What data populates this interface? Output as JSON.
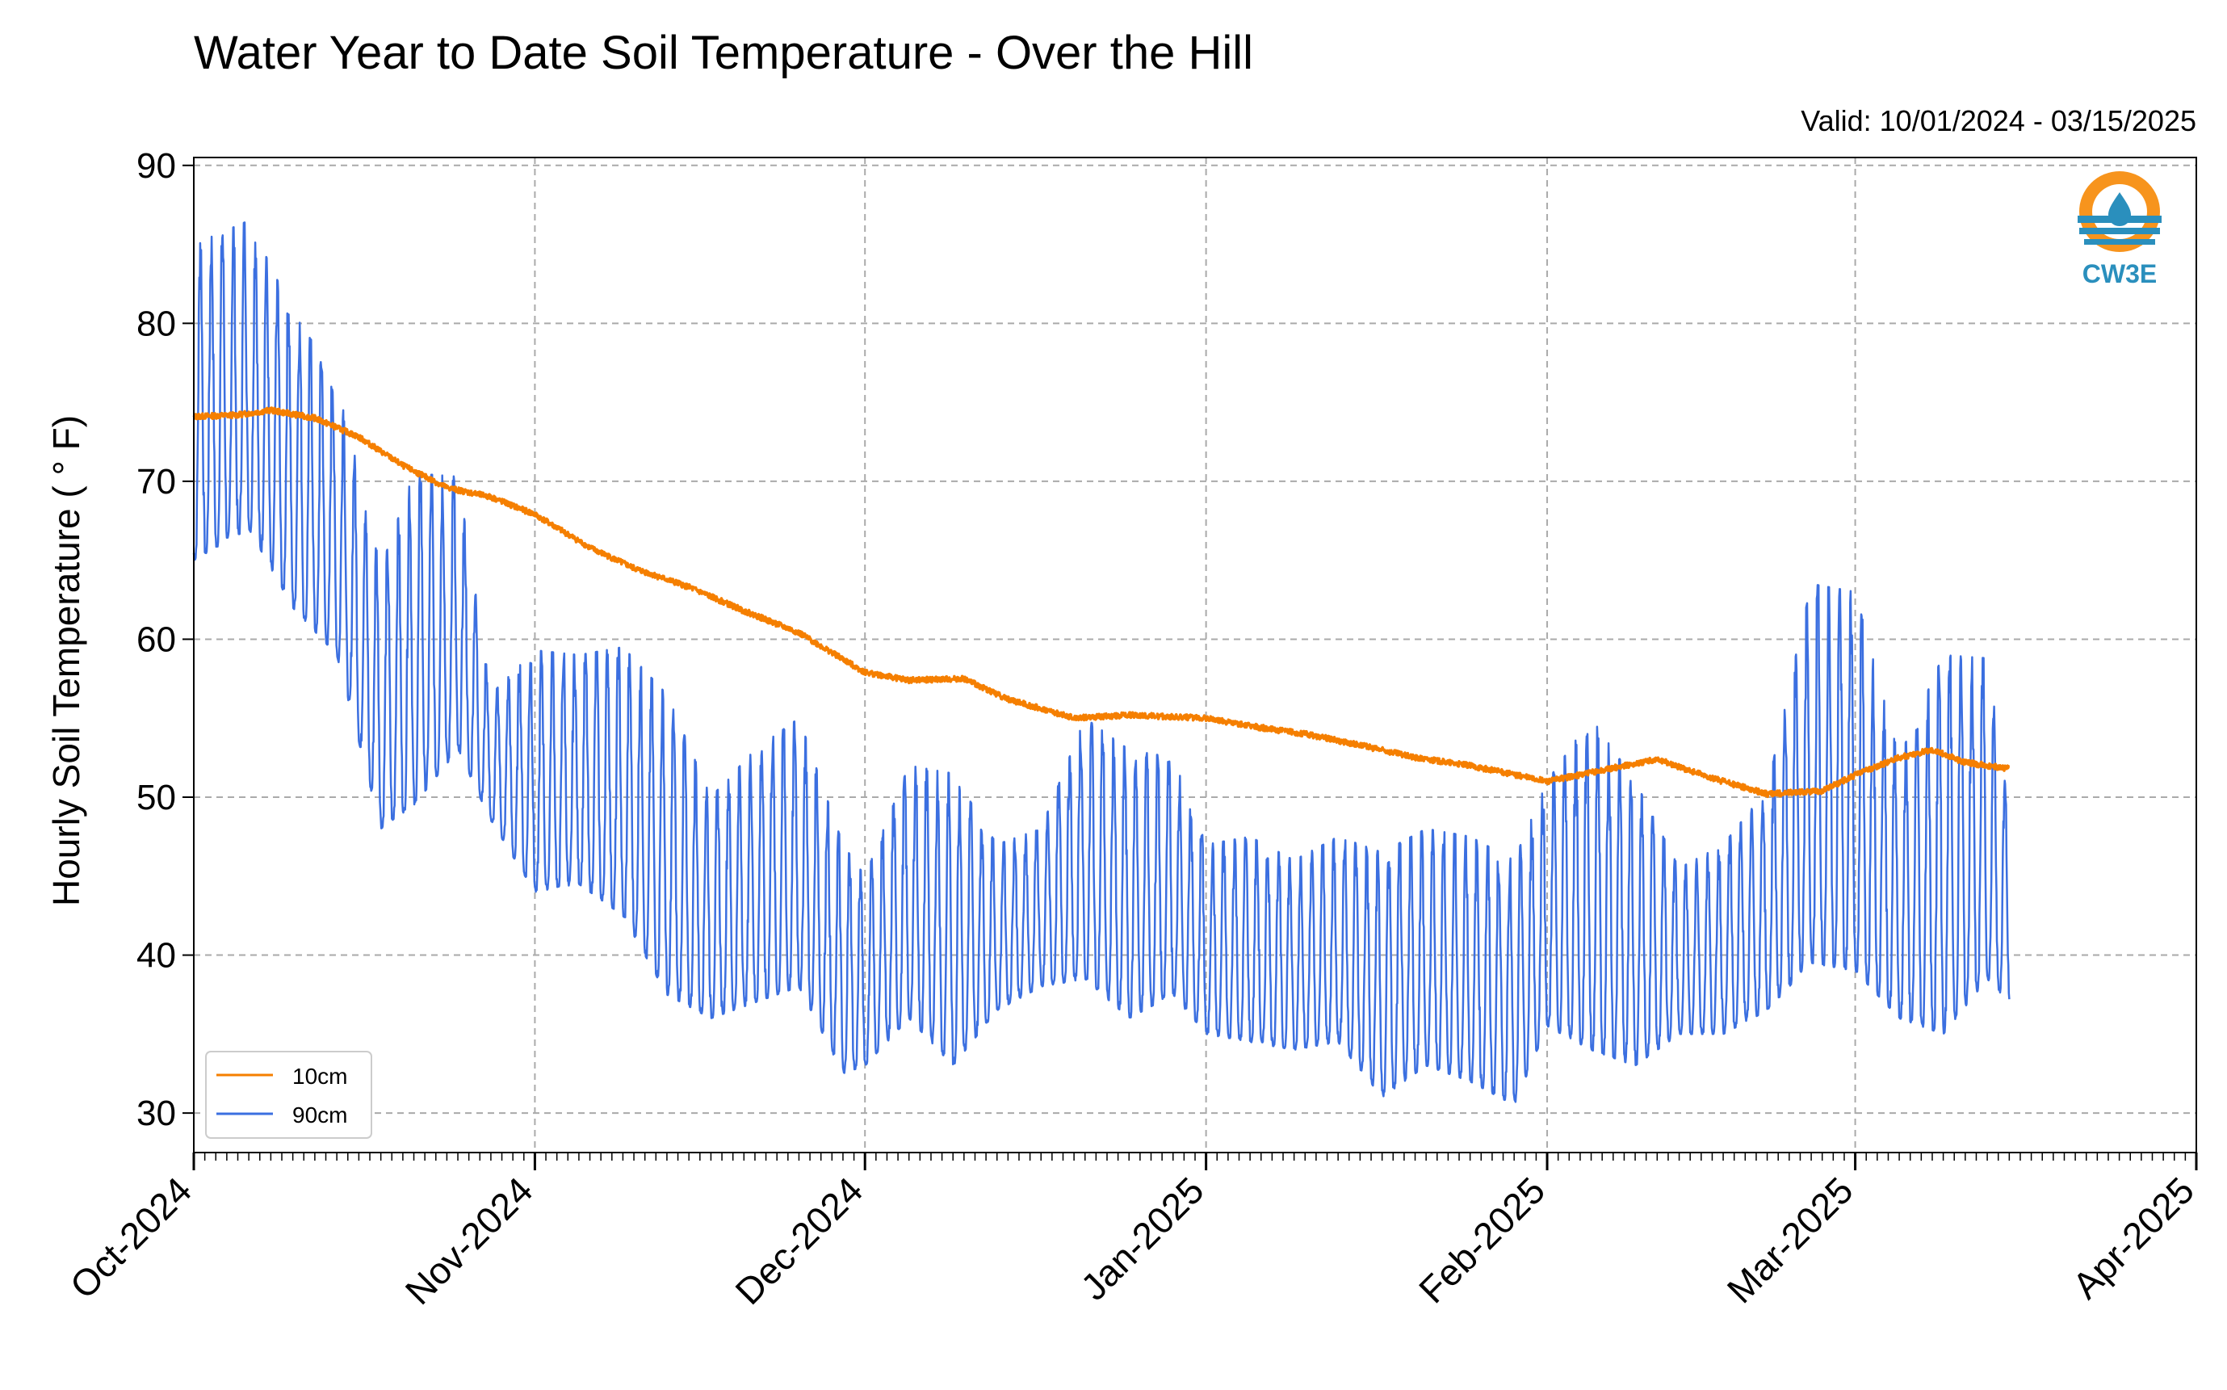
{
  "chart_data": {
    "type": "line",
    "title": "Water Year to Date Soil Temperature - Over the Hill",
    "subtitle": "Valid: 10/01/2024 - 03/15/2025",
    "xlabel": "",
    "ylabel": "Hourly Soil Temperature ( ° F)",
    "xlim": [
      "2024-10-01",
      "2025-04-01"
    ],
    "ylim": [
      27.5,
      90.5
    ],
    "x_ticks": [
      "Oct-2024",
      "Nov-2024",
      "Dec-2024",
      "Jan-2025",
      "Feb-2025",
      "Mar-2025",
      "Apr-2025"
    ],
    "x_tick_dates": [
      "2024-10-01",
      "2024-11-01",
      "2024-12-01",
      "2025-01-01",
      "2025-02-01",
      "2025-03-01",
      "2025-04-01"
    ],
    "y_ticks": [
      30,
      40,
      50,
      60,
      70,
      80,
      90
    ],
    "grid": true,
    "legend_position": "lower-left",
    "logo_text": "CW3E",
    "series": [
      {
        "name": "10cm",
        "color": "#f57f00",
        "dates": [
          "2024-10-01",
          "2024-10-05",
          "2024-10-08",
          "2024-10-12",
          "2024-10-16",
          "2024-10-20",
          "2024-10-24",
          "2024-10-28",
          "2024-11-01",
          "2024-11-06",
          "2024-11-10",
          "2024-11-15",
          "2024-11-20",
          "2024-11-25",
          "2024-12-01",
          "2024-12-05",
          "2024-12-10",
          "2024-12-14",
          "2024-12-20",
          "2024-12-25",
          "2025-01-01",
          "2025-01-06",
          "2025-01-10",
          "2025-01-15",
          "2025-01-20",
          "2025-01-25",
          "2025-02-01",
          "2025-02-06",
          "2025-02-11",
          "2025-02-16",
          "2025-02-21",
          "2025-02-26",
          "2025-03-01",
          "2025-03-05",
          "2025-03-08",
          "2025-03-11",
          "2025-03-15"
        ],
        "values": [
          74.1,
          74.2,
          74.5,
          74.0,
          72.8,
          71.0,
          69.6,
          69.0,
          67.9,
          65.8,
          64.5,
          63.3,
          61.8,
          60.4,
          57.9,
          57.4,
          57.5,
          56.2,
          55.0,
          55.2,
          55.0,
          54.4,
          54.0,
          53.3,
          52.5,
          52.0,
          51.0,
          51.7,
          52.4,
          51.2,
          50.2,
          50.4,
          51.4,
          52.5,
          53.0,
          52.2,
          51.8
        ]
      },
      {
        "name": "90cm",
        "color": "#3b6fe0",
        "dates": [
          "2024-10-01",
          "2024-10-06",
          "2024-10-10",
          "2024-10-14",
          "2024-10-18",
          "2024-10-21",
          "2024-10-25",
          "2024-10-28",
          "2024-11-01",
          "2024-11-05",
          "2024-11-09",
          "2024-11-13",
          "2024-11-17",
          "2024-11-21",
          "2024-11-25",
          "2024-11-29",
          "2024-12-01",
          "2024-12-05",
          "2024-12-09",
          "2024-12-13",
          "2024-12-17",
          "2024-12-21",
          "2024-12-25",
          "2024-12-29",
          "2025-01-01",
          "2025-01-05",
          "2025-01-09",
          "2025-01-13",
          "2025-01-17",
          "2025-01-21",
          "2025-01-25",
          "2025-01-29",
          "2025-02-01",
          "2025-02-05",
          "2025-02-09",
          "2025-02-13",
          "2025-02-17",
          "2025-02-21",
          "2025-02-25",
          "2025-03-01",
          "2025-03-05",
          "2025-03-09",
          "2025-03-13",
          "2025-03-15"
        ],
        "highs": [
          85.0,
          86.5,
          80.7,
          76.5,
          64.5,
          70.5,
          70.3,
          56.5,
          59.3,
          59.0,
          59.5,
          56.5,
          50.0,
          53.0,
          55.0,
          47.0,
          45.0,
          52.0,
          51.5,
          47.0,
          48.0,
          55.0,
          53.0,
          52.5,
          47.0,
          47.5,
          46.0,
          47.5,
          46.5,
          48.0,
          47.5,
          46.0,
          51.0,
          55.0,
          51.0,
          45.5,
          47.0,
          50.5,
          63.5,
          63.0,
          52.5,
          59.0,
          58.8,
          49.0
        ],
        "lows": [
          65.0,
          67.0,
          62.0,
          59.0,
          48.0,
          49.5,
          53.0,
          48.5,
          44.0,
          44.5,
          42.5,
          37.5,
          36.0,
          37.0,
          38.0,
          32.5,
          33.0,
          36.0,
          33.0,
          36.5,
          38.0,
          38.5,
          36.0,
          37.5,
          35.0,
          34.5,
          34.0,
          34.5,
          31.0,
          33.0,
          32.0,
          30.5,
          35.5,
          34.0,
          33.0,
          35.0,
          35.0,
          36.5,
          39.5,
          39.0,
          36.0,
          35.0,
          38.5,
          37.0
        ]
      }
    ]
  }
}
